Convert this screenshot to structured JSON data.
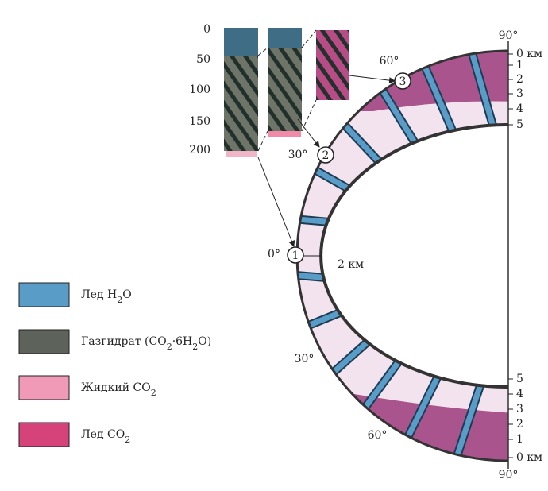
{
  "depth_scale": {
    "ticks": [
      0,
      50,
      100,
      150,
      200
    ]
  },
  "latitude_labels": {
    "top_pole": "90°",
    "top_60": "60°",
    "top_30": "30°",
    "equator": "0°",
    "bottom_30": "30°",
    "bottom_60": "60°",
    "bottom_pole": "90°"
  },
  "sites": [
    "1",
    "2",
    "3"
  ],
  "thickness_scale": {
    "top": [
      "0 км",
      "1",
      "2",
      "3",
      "4",
      "5"
    ],
    "bottom": [
      "5",
      "4",
      "3",
      "2",
      "1",
      "0 км"
    ]
  },
  "scale_bar": "2 км",
  "legend": [
    {
      "parts": [
        "Лед H",
        "2",
        "O"
      ]
    },
    {
      "parts": [
        "Газгидрат (CO",
        "2",
        "·6H",
        "2",
        "O)"
      ]
    },
    {
      "parts": [
        "Жидкий CO",
        "2"
      ]
    },
    {
      "parts": [
        "Лед CO",
        "2"
      ]
    }
  ]
}
